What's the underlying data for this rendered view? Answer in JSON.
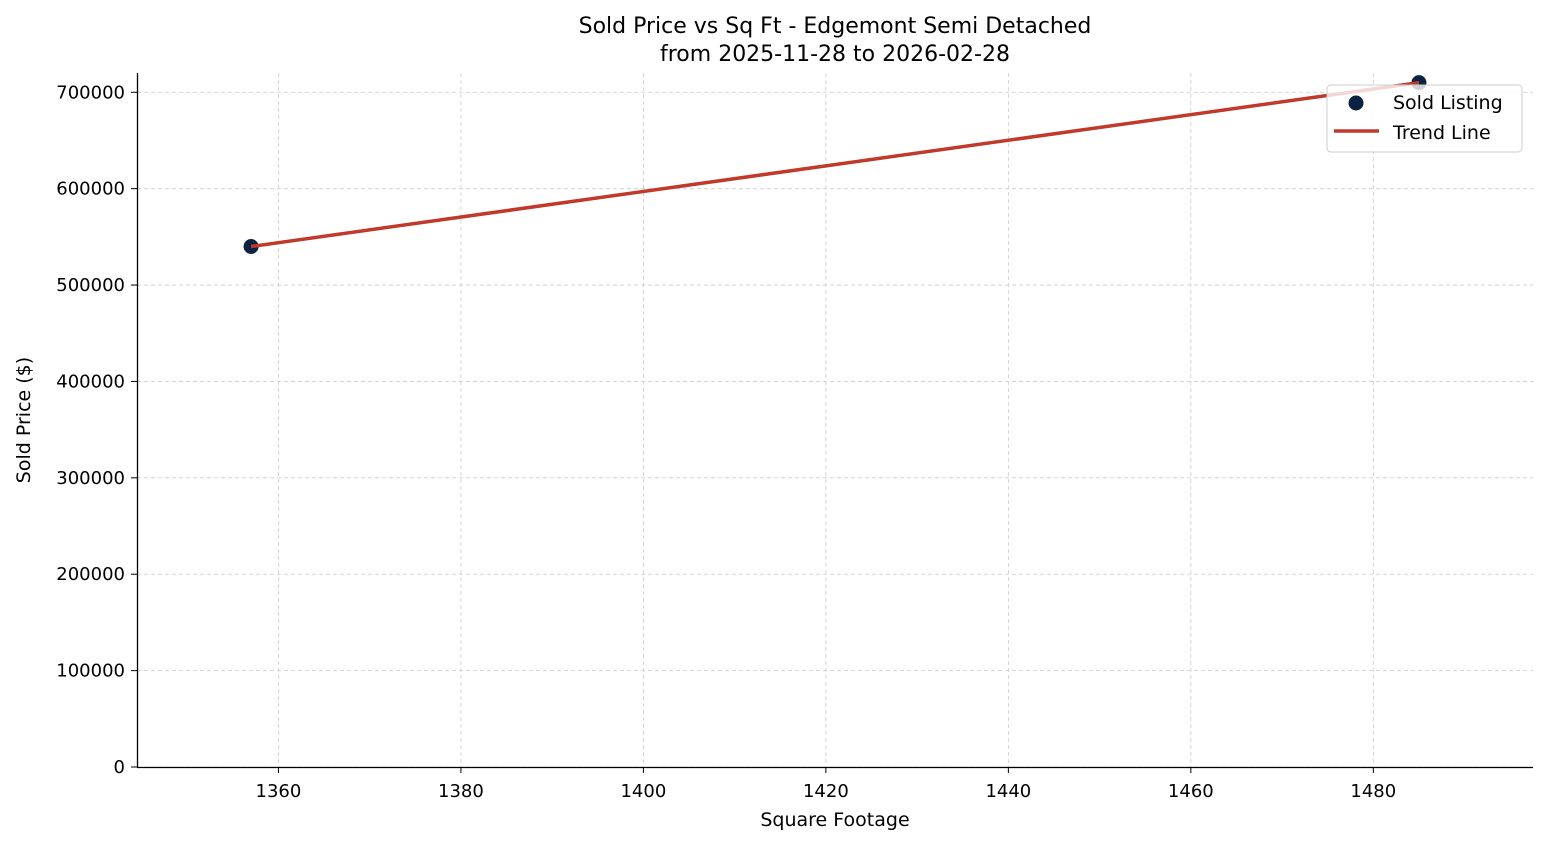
{
  "chart_data": {
    "type": "scatter",
    "title": "Sold Price vs Sq Ft - Edgemont Semi Detached",
    "subtitle": "from 2025-11-28 to 2026-02-28",
    "xlabel": "Square Footage",
    "ylabel": "Sold Price ($)",
    "xlim": [
      1344.5,
      1497.5
    ],
    "ylim": [
      0,
      720000
    ],
    "xticks": [
      1360,
      1380,
      1400,
      1420,
      1440,
      1460,
      1480
    ],
    "yticks": [
      0,
      100000,
      200000,
      300000,
      400000,
      500000,
      600000,
      700000
    ],
    "grid": true,
    "legend_placement": "upper-right",
    "series": [
      {
        "name": "Sold Listing",
        "kind": "scatter",
        "color": "#0b2341",
        "x": [
          1357,
          1485
        ],
        "y": [
          540000,
          710000
        ]
      },
      {
        "name": "Trend Line",
        "kind": "line",
        "color": "#c0392b",
        "x": [
          1357,
          1485
        ],
        "y": [
          540000,
          710000
        ]
      }
    ]
  }
}
